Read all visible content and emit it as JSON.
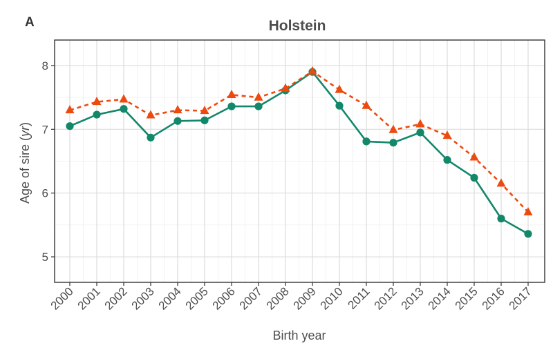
{
  "panel_label": "A",
  "chart_data": {
    "type": "line",
    "title": "Holstein",
    "xlabel": "Birth year",
    "ylabel_prefix": "Age of sire (",
    "ylabel_unit": "yr",
    "ylabel_suffix": ")",
    "x": [
      "2000",
      "2001",
      "2002",
      "2003",
      "2004",
      "2005",
      "2006",
      "2007",
      "2008",
      "2009",
      "2010",
      "2011",
      "2012",
      "2013",
      "2014",
      "2015",
      "2016",
      "2017"
    ],
    "ylim": [
      4.6,
      8.4
    ],
    "yticks": [
      5,
      6,
      7,
      8
    ],
    "grid": true,
    "series": [
      {
        "style": "solid",
        "marker": "circle",
        "color": "#12876a",
        "values": [
          7.05,
          7.23,
          7.32,
          6.87,
          7.13,
          7.14,
          7.36,
          7.36,
          7.61,
          7.9,
          7.37,
          6.81,
          6.79,
          6.95,
          6.52,
          6.24,
          5.6,
          5.36
        ]
      },
      {
        "style": "dashed",
        "marker": "triangle",
        "color": "#ec4a0e",
        "values": [
          7.3,
          7.43,
          7.47,
          7.22,
          7.3,
          7.29,
          7.54,
          7.5,
          7.64,
          7.91,
          7.62,
          7.37,
          6.99,
          7.08,
          6.9,
          6.56,
          6.15,
          5.7
        ]
      }
    ]
  }
}
